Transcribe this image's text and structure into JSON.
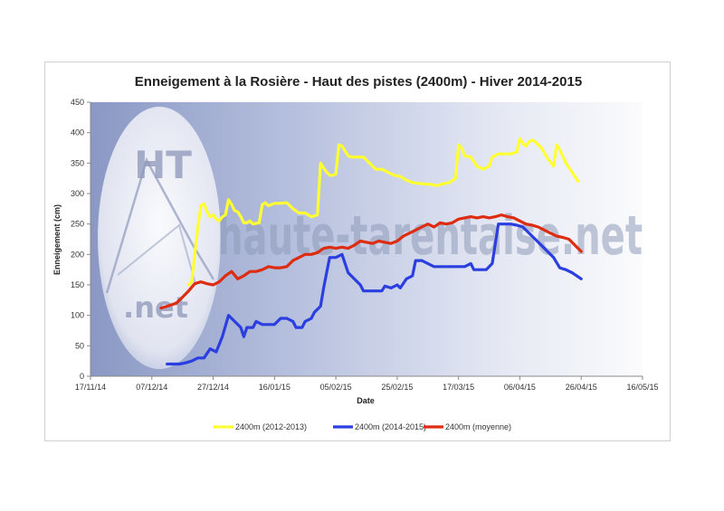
{
  "watermark": {
    "logo_top": "HT",
    "logo_bottom": ".net",
    "site": "haute-tarentaise.net"
  },
  "chart_data": {
    "type": "line",
    "title": "Enneigement à la Rosière - Haut des pistes (2400m) - Hiver 2014-2015",
    "xlabel": "Date",
    "ylabel": "Enneigement (cm)",
    "ylim": [
      0,
      450
    ],
    "yticks": [
      0,
      50,
      100,
      150,
      200,
      250,
      300,
      350,
      400,
      450
    ],
    "xlim": [
      "2014-11-17",
      "2015-05-16"
    ],
    "xtick_labels": [
      "17/11/14",
      "07/12/14",
      "27/12/14",
      "16/01/15",
      "05/02/15",
      "25/02/15",
      "17/03/15",
      "06/04/15",
      "26/04/15",
      "16/05/15"
    ],
    "grid": false,
    "legend_position": "bottom",
    "series": [
      {
        "name": "2400m (2012-2013)",
        "color": "#ffff33",
        "points": [
          [
            "2014-12-19",
            150
          ],
          [
            "2014-12-20",
            155
          ],
          [
            "2014-12-21",
            200
          ],
          [
            "2014-12-22",
            245
          ],
          [
            "2014-12-23",
            280
          ],
          [
            "2014-12-24",
            283
          ],
          [
            "2014-12-25",
            270
          ],
          [
            "2014-12-26",
            262
          ],
          [
            "2014-12-27",
            265
          ],
          [
            "2014-12-28",
            258
          ],
          [
            "2014-12-29",
            255
          ],
          [
            "2014-12-30",
            262
          ],
          [
            "2014-12-31",
            265
          ],
          [
            "2015-01-01",
            290
          ],
          [
            "2015-01-02",
            282
          ],
          [
            "2015-01-03",
            272
          ],
          [
            "2015-01-04",
            270
          ],
          [
            "2015-01-05",
            262
          ],
          [
            "2015-01-06",
            252
          ],
          [
            "2015-01-07",
            252
          ],
          [
            "2015-01-08",
            255
          ],
          [
            "2015-01-09",
            250
          ],
          [
            "2015-01-11",
            252
          ],
          [
            "2015-01-12",
            282
          ],
          [
            "2015-01-13",
            285
          ],
          [
            "2015-01-14",
            280
          ],
          [
            "2015-01-16",
            284
          ],
          [
            "2015-01-18",
            284
          ],
          [
            "2015-01-20",
            285
          ],
          [
            "2015-01-22",
            275
          ],
          [
            "2015-01-24",
            268
          ],
          [
            "2015-01-26",
            268
          ],
          [
            "2015-01-28",
            262
          ],
          [
            "2015-01-30",
            265
          ],
          [
            "2015-01-31",
            350
          ],
          [
            "2015-02-01",
            342
          ],
          [
            "2015-02-02",
            335
          ],
          [
            "2015-02-03",
            330
          ],
          [
            "2015-02-04",
            330
          ],
          [
            "2015-02-05",
            332
          ],
          [
            "2015-02-06",
            380
          ],
          [
            "2015-02-07",
            378
          ],
          [
            "2015-02-08",
            370
          ],
          [
            "2015-02-09",
            362
          ],
          [
            "2015-02-10",
            360
          ],
          [
            "2015-02-12",
            360
          ],
          [
            "2015-02-14",
            360
          ],
          [
            "2015-02-16",
            350
          ],
          [
            "2015-02-18",
            340
          ],
          [
            "2015-02-20",
            340
          ],
          [
            "2015-02-22",
            335
          ],
          [
            "2015-02-24",
            330
          ],
          [
            "2015-02-26",
            328
          ],
          [
            "2015-02-28",
            322
          ],
          [
            "2015-03-02",
            318
          ],
          [
            "2015-03-05",
            316
          ],
          [
            "2015-03-08",
            315
          ],
          [
            "2015-03-10",
            313
          ],
          [
            "2015-03-12",
            316
          ],
          [
            "2015-03-14",
            318
          ],
          [
            "2015-03-16",
            325
          ],
          [
            "2015-03-17",
            380
          ],
          [
            "2015-03-18",
            375
          ],
          [
            "2015-03-19",
            362
          ],
          [
            "2015-03-21",
            360
          ],
          [
            "2015-03-23",
            345
          ],
          [
            "2015-03-25",
            340
          ],
          [
            "2015-03-27",
            345
          ],
          [
            "2015-03-28",
            360
          ],
          [
            "2015-03-30",
            365
          ],
          [
            "2015-04-01",
            365
          ],
          [
            "2015-04-03",
            365
          ],
          [
            "2015-04-05",
            368
          ],
          [
            "2015-04-06",
            390
          ],
          [
            "2015-04-07",
            382
          ],
          [
            "2015-04-08",
            378
          ],
          [
            "2015-04-09",
            385
          ],
          [
            "2015-04-10",
            388
          ],
          [
            "2015-04-11",
            385
          ],
          [
            "2015-04-13",
            375
          ],
          [
            "2015-04-15",
            358
          ],
          [
            "2015-04-17",
            345
          ],
          [
            "2015-04-18",
            380
          ],
          [
            "2015-04-19",
            372
          ],
          [
            "2015-04-21",
            350
          ],
          [
            "2015-04-23",
            335
          ],
          [
            "2015-04-25",
            320
          ]
        ]
      },
      {
        "name": "2400m (2014-2015)",
        "color": "#2b3fe0",
        "points": [
          [
            "2014-12-12",
            20
          ],
          [
            "2014-12-14",
            20
          ],
          [
            "2014-12-16",
            20
          ],
          [
            "2014-12-18",
            22
          ],
          [
            "2014-12-20",
            25
          ],
          [
            "2014-12-22",
            30
          ],
          [
            "2014-12-24",
            30
          ],
          [
            "2014-12-26",
            45
          ],
          [
            "2014-12-28",
            40
          ],
          [
            "2014-12-30",
            65
          ],
          [
            "2015-01-01",
            100
          ],
          [
            "2015-01-03",
            90
          ],
          [
            "2015-01-05",
            80
          ],
          [
            "2015-01-06",
            65
          ],
          [
            "2015-01-07",
            80
          ],
          [
            "2015-01-09",
            80
          ],
          [
            "2015-01-10",
            90
          ],
          [
            "2015-01-12",
            85
          ],
          [
            "2015-01-14",
            85
          ],
          [
            "2015-01-16",
            85
          ],
          [
            "2015-01-18",
            95
          ],
          [
            "2015-01-20",
            95
          ],
          [
            "2015-01-22",
            90
          ],
          [
            "2015-01-23",
            80
          ],
          [
            "2015-01-25",
            80
          ],
          [
            "2015-01-26",
            90
          ],
          [
            "2015-01-28",
            95
          ],
          [
            "2015-01-29",
            105
          ],
          [
            "2015-01-31",
            115
          ],
          [
            "2015-02-01",
            145
          ],
          [
            "2015-02-02",
            170
          ],
          [
            "2015-02-03",
            195
          ],
          [
            "2015-02-05",
            195
          ],
          [
            "2015-02-07",
            200
          ],
          [
            "2015-02-08",
            185
          ],
          [
            "2015-02-09",
            170
          ],
          [
            "2015-02-11",
            160
          ],
          [
            "2015-02-13",
            150
          ],
          [
            "2015-02-14",
            140
          ],
          [
            "2015-02-16",
            140
          ],
          [
            "2015-02-18",
            140
          ],
          [
            "2015-02-20",
            140
          ],
          [
            "2015-02-21",
            148
          ],
          [
            "2015-02-23",
            145
          ],
          [
            "2015-02-25",
            150
          ],
          [
            "2015-02-26",
            145
          ],
          [
            "2015-02-28",
            160
          ],
          [
            "2015-03-02",
            165
          ],
          [
            "2015-03-03",
            190
          ],
          [
            "2015-03-05",
            190
          ],
          [
            "2015-03-07",
            185
          ],
          [
            "2015-03-09",
            180
          ],
          [
            "2015-03-11",
            180
          ],
          [
            "2015-03-13",
            180
          ],
          [
            "2015-03-15",
            180
          ],
          [
            "2015-03-17",
            180
          ],
          [
            "2015-03-19",
            180
          ],
          [
            "2015-03-21",
            185
          ],
          [
            "2015-03-22",
            175
          ],
          [
            "2015-03-24",
            175
          ],
          [
            "2015-03-26",
            175
          ],
          [
            "2015-03-28",
            185
          ],
          [
            "2015-03-30",
            250
          ],
          [
            "2015-04-01",
            250
          ],
          [
            "2015-04-03",
            250
          ],
          [
            "2015-04-05",
            248
          ],
          [
            "2015-04-07",
            245
          ],
          [
            "2015-04-09",
            235
          ],
          [
            "2015-04-11",
            225
          ],
          [
            "2015-04-13",
            215
          ],
          [
            "2015-04-15",
            205
          ],
          [
            "2015-04-17",
            195
          ],
          [
            "2015-04-19",
            178
          ],
          [
            "2015-04-21",
            175
          ],
          [
            "2015-04-23",
            170
          ],
          [
            "2015-04-26",
            160
          ]
        ]
      },
      {
        "name": "2400m (moyenne)",
        "color": "#dd2c10",
        "points": [
          [
            "2014-12-10",
            112
          ],
          [
            "2014-12-12",
            115
          ],
          [
            "2014-12-15",
            120
          ],
          [
            "2014-12-17",
            130
          ],
          [
            "2014-12-19",
            140
          ],
          [
            "2014-12-21",
            152
          ],
          [
            "2014-12-23",
            155
          ],
          [
            "2014-12-25",
            152
          ],
          [
            "2014-12-27",
            150
          ],
          [
            "2014-12-29",
            155
          ],
          [
            "2014-12-31",
            165
          ],
          [
            "2015-01-02",
            172
          ],
          [
            "2015-01-04",
            160
          ],
          [
            "2015-01-06",
            165
          ],
          [
            "2015-01-08",
            172
          ],
          [
            "2015-01-10",
            172
          ],
          [
            "2015-01-12",
            175
          ],
          [
            "2015-01-14",
            180
          ],
          [
            "2015-01-16",
            178
          ],
          [
            "2015-01-18",
            178
          ],
          [
            "2015-01-20",
            180
          ],
          [
            "2015-01-22",
            190
          ],
          [
            "2015-01-24",
            195
          ],
          [
            "2015-01-26",
            200
          ],
          [
            "2015-01-28",
            200
          ],
          [
            "2015-01-30",
            203
          ],
          [
            "2015-02-01",
            210
          ],
          [
            "2015-02-03",
            212
          ],
          [
            "2015-02-05",
            210
          ],
          [
            "2015-02-07",
            212
          ],
          [
            "2015-02-09",
            210
          ],
          [
            "2015-02-11",
            215
          ],
          [
            "2015-02-13",
            222
          ],
          [
            "2015-02-15",
            220
          ],
          [
            "2015-02-17",
            218
          ],
          [
            "2015-02-19",
            222
          ],
          [
            "2015-02-21",
            220
          ],
          [
            "2015-02-23",
            218
          ],
          [
            "2015-02-25",
            222
          ],
          [
            "2015-02-27",
            230
          ],
          [
            "2015-03-01",
            235
          ],
          [
            "2015-03-03",
            240
          ],
          [
            "2015-03-05",
            245
          ],
          [
            "2015-03-07",
            250
          ],
          [
            "2015-03-09",
            245
          ],
          [
            "2015-03-11",
            252
          ],
          [
            "2015-03-13",
            250
          ],
          [
            "2015-03-15",
            252
          ],
          [
            "2015-03-17",
            258
          ],
          [
            "2015-03-19",
            260
          ],
          [
            "2015-03-21",
            262
          ],
          [
            "2015-03-23",
            260
          ],
          [
            "2015-03-25",
            262
          ],
          [
            "2015-03-27",
            260
          ],
          [
            "2015-03-29",
            262
          ],
          [
            "2015-03-31",
            265
          ],
          [
            "2015-04-02",
            262
          ],
          [
            "2015-04-04",
            260
          ],
          [
            "2015-04-06",
            255
          ],
          [
            "2015-04-08",
            250
          ],
          [
            "2015-04-10",
            248
          ],
          [
            "2015-04-12",
            245
          ],
          [
            "2015-04-14",
            240
          ],
          [
            "2015-04-16",
            235
          ],
          [
            "2015-04-18",
            230
          ],
          [
            "2015-04-20",
            228
          ],
          [
            "2015-04-22",
            225
          ],
          [
            "2015-04-24",
            215
          ],
          [
            "2015-04-26",
            205
          ]
        ]
      }
    ]
  }
}
